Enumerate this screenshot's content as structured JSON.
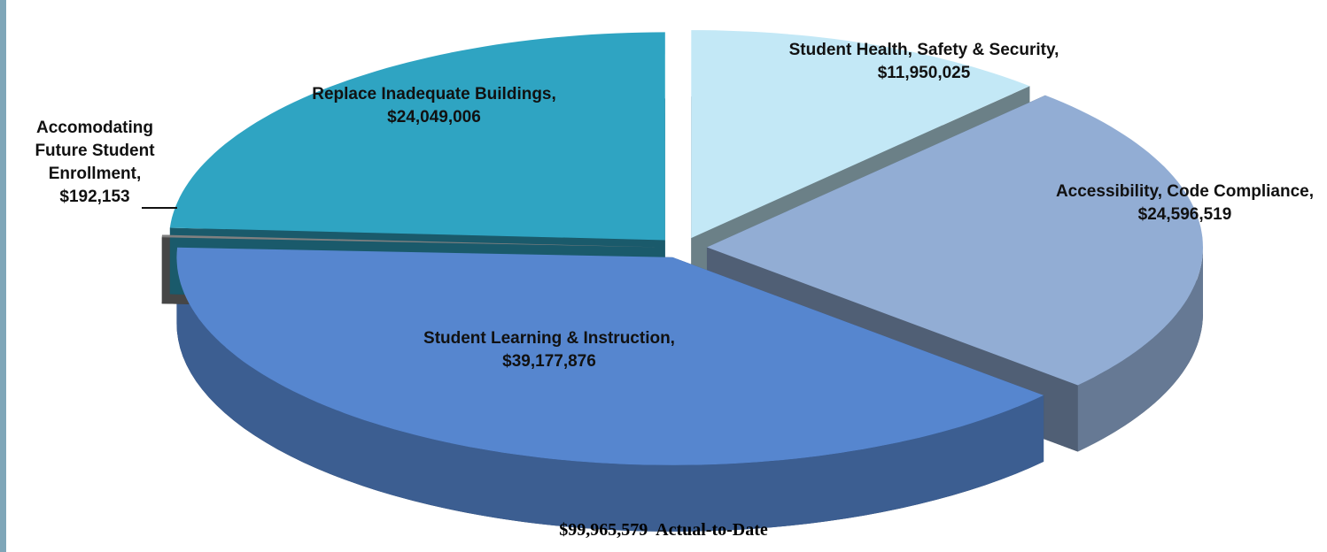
{
  "chart_data": {
    "type": "pie",
    "categories": [
      "Student Health, Safety & Security,",
      "Accessibility, Code Compliance,",
      "Student Learning & Instruction,",
      "Accomodating Future Student Enrollment,",
      "Replace Inadequate Buildings,"
    ],
    "values": [
      11950025,
      24596519,
      39177876,
      192153,
      24049006
    ],
    "value_labels": [
      "$11,950,025",
      "$24,596,519",
      "$39,177,876",
      "$192,153",
      "$24,049,006"
    ],
    "colors": [
      "#c3e8f6",
      "#92add4",
      "#5686cf",
      "#808080",
      "#2fa4c2"
    ],
    "caption": "$99,965,579  Actual-to-Date"
  }
}
